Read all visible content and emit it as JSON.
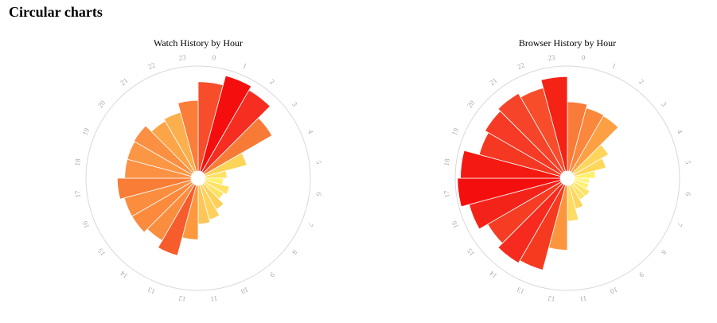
{
  "page": {
    "title": "Circular charts"
  },
  "chart_data": [
    {
      "type": "radial-bar",
      "title": "Watch History by Hour",
      "angular_axis": {
        "labels": [
          "0",
          "1",
          "2",
          "3",
          "4",
          "5",
          "6",
          "7",
          "8",
          "9",
          "10",
          "11",
          "12",
          "13",
          "14",
          "15",
          "16",
          "17",
          "18",
          "19",
          "20",
          "21",
          "22",
          "23"
        ]
      },
      "radial_max": 140,
      "categories": [
        "0",
        "1",
        "2",
        "3",
        "4",
        "5",
        "6",
        "7",
        "8",
        "9",
        "10",
        "11",
        "12",
        "13",
        "14",
        "15",
        "16",
        "17",
        "18",
        "19",
        "20",
        "21",
        "22",
        "23"
      ],
      "values": [
        120,
        133,
        127,
        105,
        58,
        29,
        24,
        34,
        30,
        39,
        48,
        52,
        73,
        98,
        87,
        93,
        93,
        99,
        89,
        89,
        90,
        79,
        82,
        95
      ],
      "colors": [
        "#f74d2a",
        "#f40f0e",
        "#f62e22",
        "#f87a37",
        "#fcd45a",
        "#fee265",
        "#fff06e",
        "#fee265",
        "#fee265",
        "#fdd05a",
        "#fed15a",
        "#fcc65a",
        "#fd983e",
        "#f75c2d",
        "#fb8d3f",
        "#fb8a3d",
        "#fb8d3f",
        "#f87d36",
        "#fb9243",
        "#fb9744",
        "#fb8f42",
        "#fba548",
        "#fbb04d",
        "#fb7d3a"
      ]
    },
    {
      "type": "radial-bar",
      "title": "Browser History by Hour",
      "angular_axis": {
        "labels": [
          "0",
          "1",
          "2",
          "3",
          "4",
          "5",
          "6",
          "7",
          "8",
          "9",
          "10",
          "11",
          "12",
          "13",
          "14",
          "15",
          "16",
          "17",
          "18",
          "19",
          "20",
          "21",
          "22",
          "23"
        ]
      },
      "radial_max": 140,
      "categories": [
        "0",
        "1",
        "2",
        "3",
        "4",
        "5",
        "6",
        "7",
        "8",
        "9",
        "10",
        "11",
        "12",
        "13",
        "14",
        "15",
        "16",
        "17",
        "18",
        "19",
        "20",
        "21",
        "22",
        "23"
      ],
      "values": [
        93,
        88,
        87,
        54,
        44,
        28,
        20,
        20,
        25,
        24,
        33,
        48,
        87,
        118,
        122,
        114,
        127,
        138,
        134,
        113,
        118,
        122,
        116,
        127
      ],
      "colors": [
        "#f87b3a",
        "#fb873d",
        "#fda044",
        "#fed55c",
        "#fed85c",
        "#fff06e",
        "#fff387",
        "#fff070",
        "#fee466",
        "#fee466",
        "#fed55e",
        "#fedb63",
        "#fb963f",
        "#f63a20",
        "#f62a1e",
        "#f43d22",
        "#f4231a",
        "#f40f0e",
        "#f41911",
        "#f53822",
        "#f63a25",
        "#f5442a",
        "#f74d2b",
        "#f42315"
      ]
    }
  ]
}
